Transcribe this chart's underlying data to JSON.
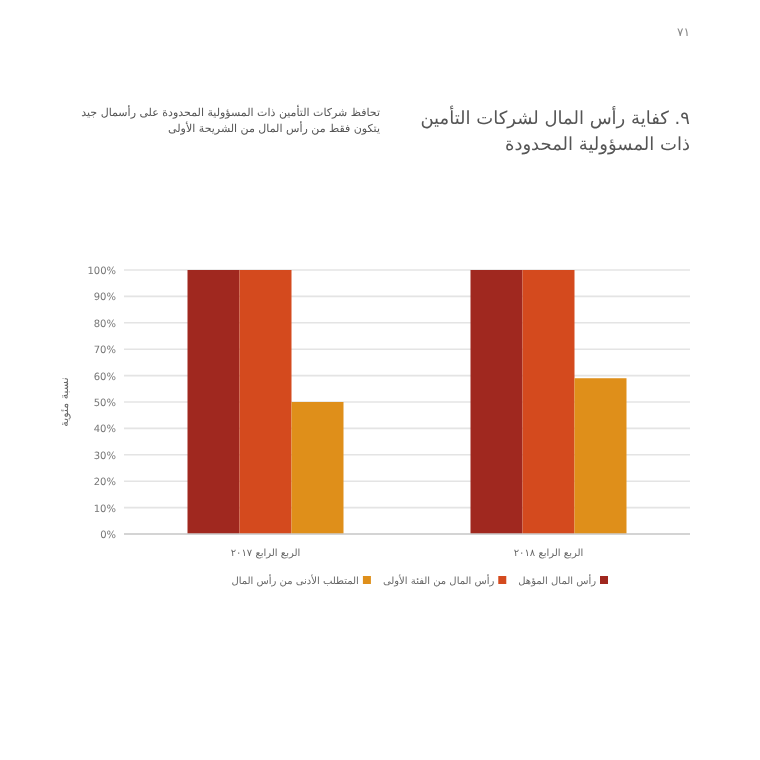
{
  "chart_data": {
    "type": "bar",
    "title": "٩. كفاية رأس المال لشركات التأمين ذات المسؤولية المحدودة",
    "subtitle": "تحافظ شركات التأمين ذات المسؤولية المحدودة على رأسمال جيد يتكون فقط من رأس المال من الشريحة الأولى",
    "ylabel": "نسبة مئوية",
    "annotations": [
      "٧١"
    ],
    "categories": [
      "الربع الرابع ٢٠١٧",
      "الربع الرابع ٢٠١٨"
    ],
    "series": [
      {
        "name": "رأس المال المؤهل",
        "color": "#a0281f",
        "values": [
          100,
          100
        ]
      },
      {
        "name": "رأس المال من الفئة الأولى",
        "color": "#d44a1e",
        "values": [
          100,
          100
        ]
      },
      {
        "name": "المتطلب الأدنى من رأس المال",
        "color": "#df8f1a",
        "values": [
          50,
          59
        ]
      }
    ],
    "ylim": [
      0,
      100
    ],
    "yticks": [
      {
        "value": 0,
        "label": "0%"
      },
      {
        "value": 10,
        "label": "10%"
      },
      {
        "value": 20,
        "label": "20%"
      },
      {
        "value": 30,
        "label": "30%"
      },
      {
        "value": 40,
        "label": "40%"
      },
      {
        "value": 50,
        "label": "50%"
      },
      {
        "value": 60,
        "label": "60%"
      },
      {
        "value": 70,
        "label": "70%"
      },
      {
        "value": 80,
        "label": "80%"
      },
      {
        "value": 90,
        "label": "90%"
      },
      {
        "value": 100,
        "label": "100%"
      }
    ],
    "grid": "y",
    "legend": "bottom"
  }
}
